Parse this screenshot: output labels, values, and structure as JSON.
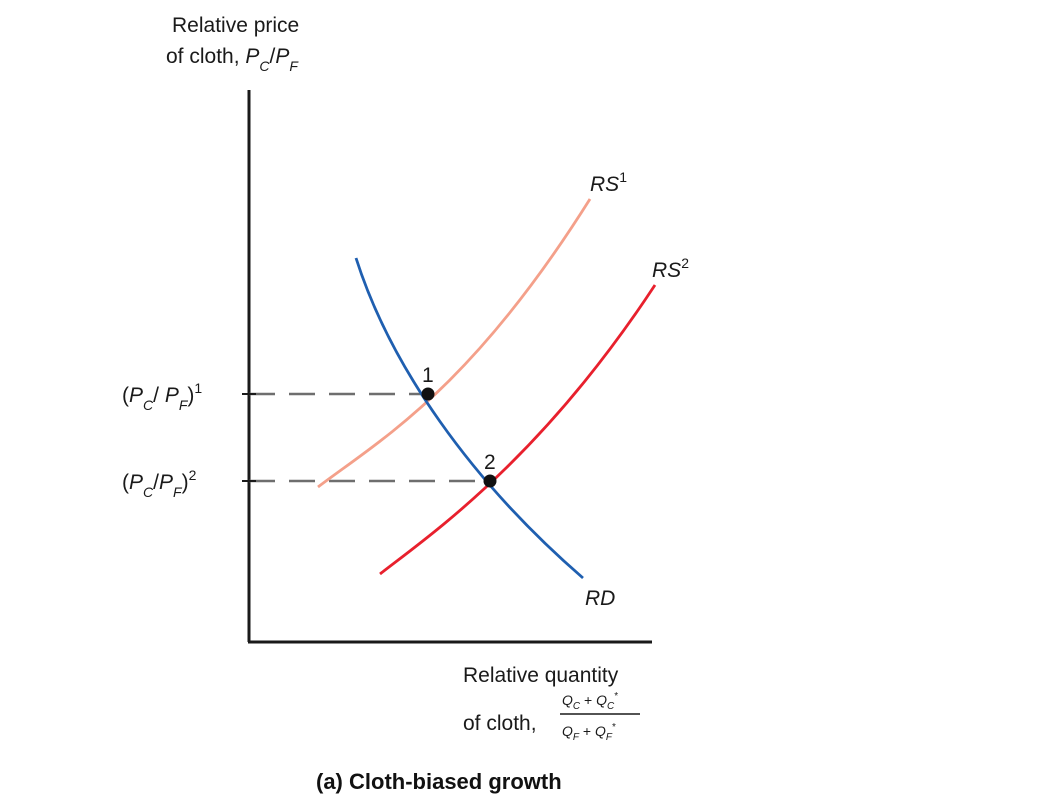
{
  "figure": {
    "y_axis_label_line1": "Relative price",
    "y_axis_label_line2_prefix": "of cloth, ",
    "x_axis_label_line1": "Relative quantity",
    "x_axis_label_line2_prefix": "of cloth,",
    "caption": "(a) Cloth-biased growth"
  },
  "curves": {
    "rs1": {
      "label": "RS",
      "sup": "1",
      "color": "#f4a08a"
    },
    "rs2": {
      "label": "RS",
      "sup": "2",
      "color": "#e8202d"
    },
    "rd": {
      "label": "RD",
      "color": "#1f5fb0"
    }
  },
  "equilibria": {
    "p1": {
      "label": "1",
      "tick_sup": "1"
    },
    "p2": {
      "label": "2",
      "tick_sup": "2"
    }
  },
  "colors": {
    "axis": "#1a1a1a",
    "dash": "#6e6e6e",
    "point": "#111111"
  }
}
